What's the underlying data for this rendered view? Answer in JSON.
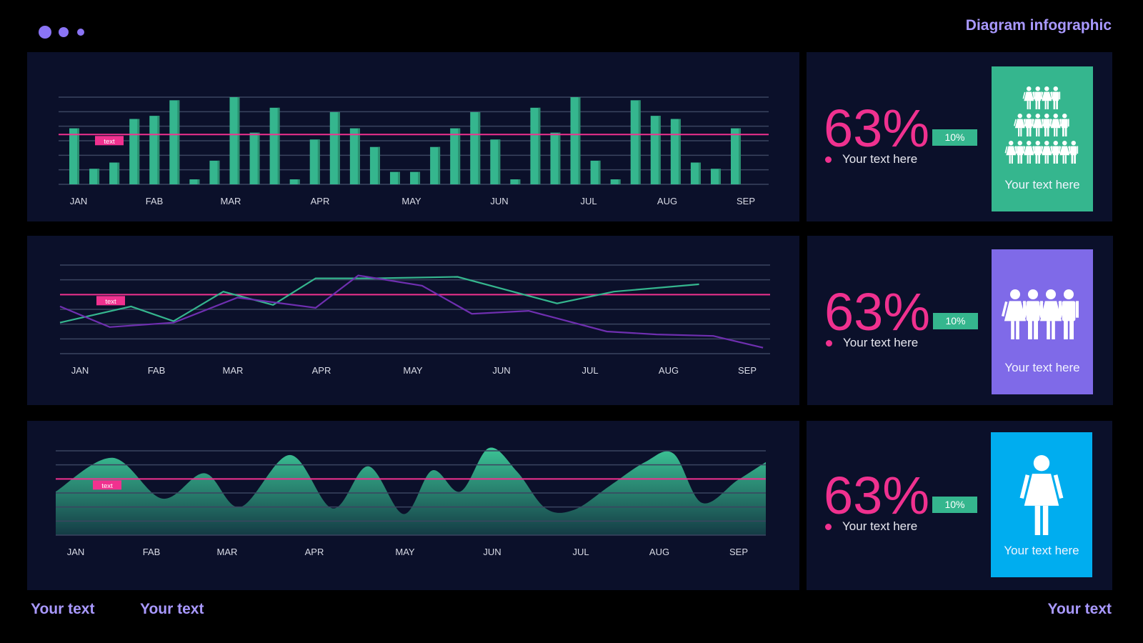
{
  "header": {
    "title": "Diagram infographic"
  },
  "colors": {
    "accent": "#a999ff",
    "bar": "#35b68e",
    "pink": "#f0318f",
    "purple": "#6f2fb0",
    "panel": "#0b102a",
    "card_green": "#35b68e",
    "card_violet": "#7f6ae8",
    "card_blue": "#00adef"
  },
  "chart_data": [
    {
      "type": "bar",
      "months": [
        "JAN",
        "FAB",
        "MAR",
        "APR",
        "MAY",
        "JUN",
        "JUL",
        "AUG",
        "SEP"
      ],
      "values": [
        9,
        2.5,
        3.5,
        10.5,
        11,
        13.5,
        0.8,
        3.8,
        14,
        8.3,
        12.3,
        0.8,
        7.2,
        11.6,
        9,
        6,
        2,
        2,
        6,
        9,
        11.6,
        7.2,
        0.8,
        12.3,
        8.3,
        14,
        3.8,
        0.8,
        13.5,
        11,
        10.5,
        3.5,
        2.5,
        9
      ],
      "ylim": [
        0,
        14
      ],
      "reference_value": 8,
      "reference_label": "text",
      "grid": true
    },
    {
      "type": "line",
      "months": [
        "JAN",
        "FAB",
        "MAR",
        "APR",
        "MAY",
        "JUN",
        "JUL",
        "AUG",
        "SEP"
      ],
      "series": [
        {
          "color": "#35b68e",
          "x": [
            0,
            1,
            1.6,
            2.3,
            3.0,
            3.6,
            4.4,
            5.6,
            7.0,
            7.8,
            9.0
          ],
          "values": [
            2.1,
            3.2,
            2.2,
            4.2,
            3.3,
            5.1,
            5.1,
            5.2,
            3.4,
            4.2,
            4.7
          ]
        },
        {
          "color": "#6f2fb0",
          "x": [
            0,
            0.7,
            1.6,
            2.5,
            3.6,
            4.2,
            5.1,
            5.8,
            6.6,
            7.7,
            8.4,
            9.2,
            9.9
          ],
          "values": [
            3.2,
            1.8,
            2.1,
            3.8,
            3.1,
            5.3,
            4.6,
            2.7,
            2.9,
            1.5,
            1.3,
            1.2,
            0.4
          ]
        }
      ],
      "ylim": [
        0,
        6
      ],
      "reference_value": 4,
      "reference_label": "text",
      "grid": true
    },
    {
      "type": "area",
      "months": [
        "JAN",
        "FAB",
        "MAR",
        "APR",
        "MAY",
        "JUN",
        "JUL",
        "AUG",
        "SEP"
      ],
      "x": [
        0,
        0.8,
        1.5,
        2.1,
        2.6,
        3.3,
        3.9,
        4.4,
        4.9,
        5.3,
        5.7,
        6.1,
        6.5,
        6.9,
        7.3,
        7.8,
        8.3,
        8.7,
        9.1,
        9.6,
        10
      ],
      "values": [
        3.1,
        5.5,
        2.6,
        4.4,
        2,
        5.7,
        1.9,
        4.9,
        1.5,
        4.6,
        3.1,
        6.2,
        4.5,
        1.9,
        1.8,
        3.5,
        5.2,
        5.8,
        2.3,
        3.9,
        5.2
      ],
      "ylim": [
        0,
        6
      ],
      "reference_value": 4,
      "reference_label": "text",
      "grid": true
    }
  ],
  "stats": [
    {
      "percent": "63%",
      "badge": "10%",
      "text": "Your text here",
      "card_text": "Your text here",
      "card_icon": "family-pyramid-icon"
    },
    {
      "percent": "63%",
      "badge": "10%",
      "text": "Your text here",
      "card_text": "Your text here",
      "card_icon": "family-group-icon"
    },
    {
      "percent": "63%",
      "badge": "10%",
      "text": "Your text here",
      "card_text": "Your text here",
      "card_icon": "woman-icon"
    }
  ],
  "footer": {
    "left1": "Your text",
    "left2": "Your text",
    "right": "Your text"
  }
}
